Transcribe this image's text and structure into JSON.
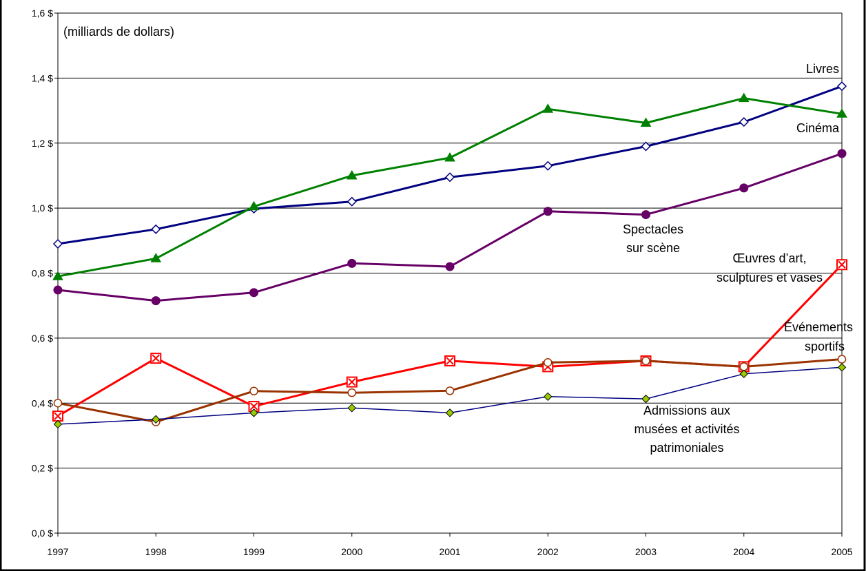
{
  "chart_data": {
    "type": "line",
    "title": "",
    "unit_label": "(milliards de dollars)",
    "xlabel": "",
    "ylabel": "",
    "x": [
      "1997",
      "1998",
      "1999",
      "2000",
      "2001",
      "2002",
      "2003",
      "2004",
      "2005"
    ],
    "ylim": [
      0,
      1.6
    ],
    "y_tick_labels": [
      "0,0 $",
      "0,2 $",
      "0,4 $",
      "0,6 $",
      "0,8 $",
      "1,0 $",
      "1,2 $",
      "1,4 $",
      "1,6 $"
    ],
    "grid": true,
    "legend": "none (series labelled directly)",
    "series": [
      {
        "name": "Livres",
        "color": "#000080",
        "marker": "diamond-open",
        "values": [
          0.89,
          0.935,
          0.998,
          1.02,
          1.095,
          1.13,
          1.19,
          1.265,
          1.375
        ]
      },
      {
        "name": "Cinéma",
        "color": "#008000",
        "marker": "triangle",
        "values": [
          0.79,
          0.845,
          1.005,
          1.1,
          1.155,
          1.305,
          1.262,
          1.338,
          1.29
        ]
      },
      {
        "name": "Spectacles sur scène",
        "color": "#660066",
        "marker": "circle",
        "values": [
          0.748,
          0.715,
          0.74,
          0.83,
          0.82,
          0.99,
          0.98,
          1.062,
          1.168
        ]
      },
      {
        "name": "Œuvres d’art, sculptures et vases",
        "color": "#ff0000",
        "marker": "square-x",
        "values": [
          0.36,
          0.538,
          0.39,
          0.465,
          0.53,
          0.512,
          0.53,
          0.512,
          0.826
        ]
      },
      {
        "name": "Événements sportifs",
        "color": "#993300",
        "marker": "circle-open",
        "values": [
          0.4,
          0.342,
          0.437,
          0.432,
          0.438,
          0.525,
          0.53,
          0.512,
          0.535
        ]
      },
      {
        "name": "Admissions aux musées et activités patrimoniales",
        "color": "#000080",
        "marker": "diamond-filled",
        "values": [
          0.335,
          0.35,
          0.37,
          0.385,
          0.37,
          0.42,
          0.413,
          0.49,
          0.51
        ]
      }
    ],
    "annotations": {
      "livres": [
        "Livres"
      ],
      "cinema": [
        "Cinéma"
      ],
      "spectacles": [
        "Spectacles",
        "sur scène"
      ],
      "oeuvres": [
        "Œuvres d’art,",
        "sculptures et vases"
      ],
      "sport": [
        "Événements",
        "sportifs"
      ],
      "musees": [
        "Admissions aux",
        "musées et activités",
        "patrimoniales"
      ]
    },
    "colors": {
      "grid": "#000000",
      "background": "#ffffff"
    }
  }
}
